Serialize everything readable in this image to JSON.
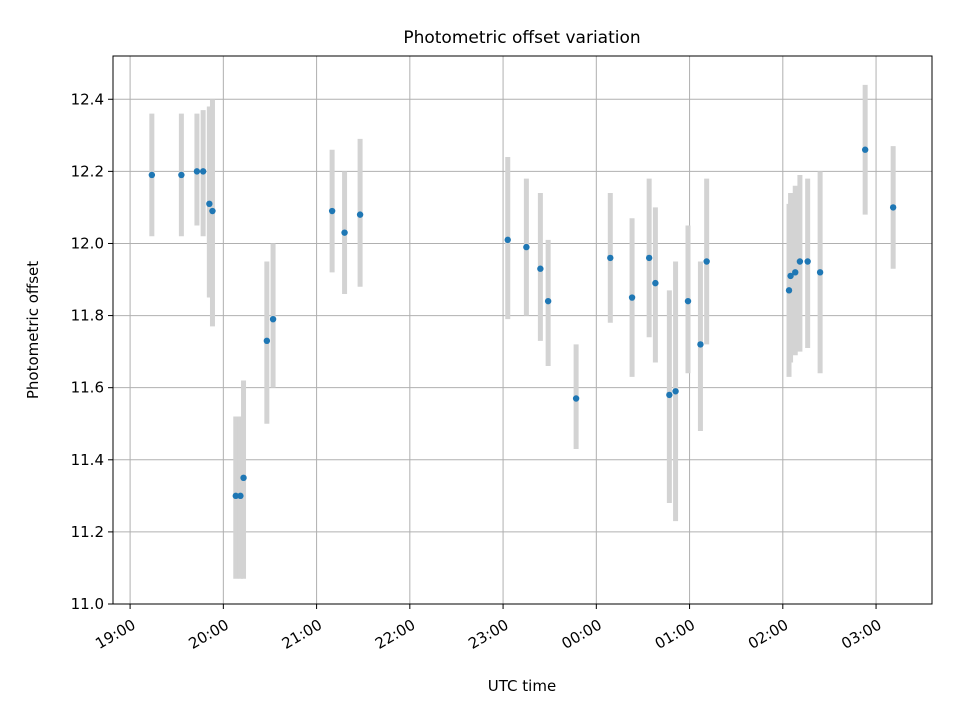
{
  "chart_data": {
    "type": "scatter",
    "title": "Photometric offset variation",
    "xlabel": "UTC time",
    "ylabel": "Photometric offset",
    "ylim": [
      11.0,
      12.52
    ],
    "xlim": [
      "18:49",
      "03:36"
    ],
    "y_ticks": [
      "11.0",
      "11.2",
      "11.4",
      "11.6",
      "11.8",
      "12.0",
      "12.2",
      "12.4"
    ],
    "x_ticks": [
      "19:00",
      "20:00",
      "21:00",
      "22:00",
      "23:00",
      "00:00",
      "01:00",
      "02:00",
      "03:00"
    ],
    "grid": true,
    "colors": {
      "point": "#1f77b4",
      "errorbar": "#d3d3d3",
      "grid": "#b0b0b0"
    },
    "points": [
      {
        "x": "19:14",
        "y": 12.19,
        "lo": 12.02,
        "hi": 12.36
      },
      {
        "x": "19:33",
        "y": 12.19,
        "lo": 12.02,
        "hi": 12.36
      },
      {
        "x": "19:43",
        "y": 12.2,
        "lo": 12.05,
        "hi": 12.36
      },
      {
        "x": "19:47",
        "y": 12.2,
        "lo": 12.02,
        "hi": 12.37
      },
      {
        "x": "19:51",
        "y": 12.11,
        "lo": 11.85,
        "hi": 12.38
      },
      {
        "x": "19:53",
        "y": 12.09,
        "lo": 11.77,
        "hi": 12.4
      },
      {
        "x": "20:08",
        "y": 11.3,
        "lo": 11.07,
        "hi": 11.52
      },
      {
        "x": "20:11",
        "y": 11.3,
        "lo": 11.07,
        "hi": 11.52
      },
      {
        "x": "20:13",
        "y": 11.35,
        "lo": 11.07,
        "hi": 11.62
      },
      {
        "x": "20:28",
        "y": 11.73,
        "lo": 11.5,
        "hi": 11.95
      },
      {
        "x": "20:32",
        "y": 11.79,
        "lo": 11.6,
        "hi": 12.0
      },
      {
        "x": "21:10",
        "y": 12.09,
        "lo": 11.92,
        "hi": 12.26
      },
      {
        "x": "21:18",
        "y": 12.03,
        "lo": 11.86,
        "hi": 12.2
      },
      {
        "x": "21:28",
        "y": 12.08,
        "lo": 11.88,
        "hi": 12.29
      },
      {
        "x": "23:03",
        "y": 12.01,
        "lo": 11.79,
        "hi": 12.24
      },
      {
        "x": "23:15",
        "y": 11.99,
        "lo": 11.8,
        "hi": 12.18
      },
      {
        "x": "23:24",
        "y": 11.93,
        "lo": 11.73,
        "hi": 12.14
      },
      {
        "x": "23:29",
        "y": 11.84,
        "lo": 11.66,
        "hi": 12.01
      },
      {
        "x": "23:47",
        "y": 11.57,
        "lo": 11.43,
        "hi": 11.72
      },
      {
        "x": "00:09",
        "y": 11.96,
        "lo": 11.78,
        "hi": 12.14
      },
      {
        "x": "00:23",
        "y": 11.85,
        "lo": 11.63,
        "hi": 12.07
      },
      {
        "x": "00:34",
        "y": 11.96,
        "lo": 11.74,
        "hi": 12.18
      },
      {
        "x": "00:38",
        "y": 11.89,
        "lo": 11.67,
        "hi": 12.1
      },
      {
        "x": "00:47",
        "y": 11.58,
        "lo": 11.28,
        "hi": 11.87
      },
      {
        "x": "00:51",
        "y": 11.59,
        "lo": 11.23,
        "hi": 11.95
      },
      {
        "x": "00:59",
        "y": 11.84,
        "lo": 11.64,
        "hi": 12.05
      },
      {
        "x": "01:07",
        "y": 11.72,
        "lo": 11.48,
        "hi": 11.95
      },
      {
        "x": "01:11",
        "y": 11.95,
        "lo": 11.72,
        "hi": 12.18
      },
      {
        "x": "02:04",
        "y": 11.87,
        "lo": 11.63,
        "hi": 12.11
      },
      {
        "x": "02:05",
        "y": 11.91,
        "lo": 11.67,
        "hi": 12.14
      },
      {
        "x": "02:08",
        "y": 11.92,
        "lo": 11.69,
        "hi": 12.16
      },
      {
        "x": "02:11",
        "y": 11.95,
        "lo": 11.7,
        "hi": 12.19
      },
      {
        "x": "02:16",
        "y": 11.95,
        "lo": 11.71,
        "hi": 12.18
      },
      {
        "x": "02:24",
        "y": 11.92,
        "lo": 11.64,
        "hi": 12.2
      },
      {
        "x": "02:53",
        "y": 12.26,
        "lo": 12.08,
        "hi": 12.44
      },
      {
        "x": "03:11",
        "y": 12.1,
        "lo": 11.93,
        "hi": 12.27
      }
    ]
  }
}
